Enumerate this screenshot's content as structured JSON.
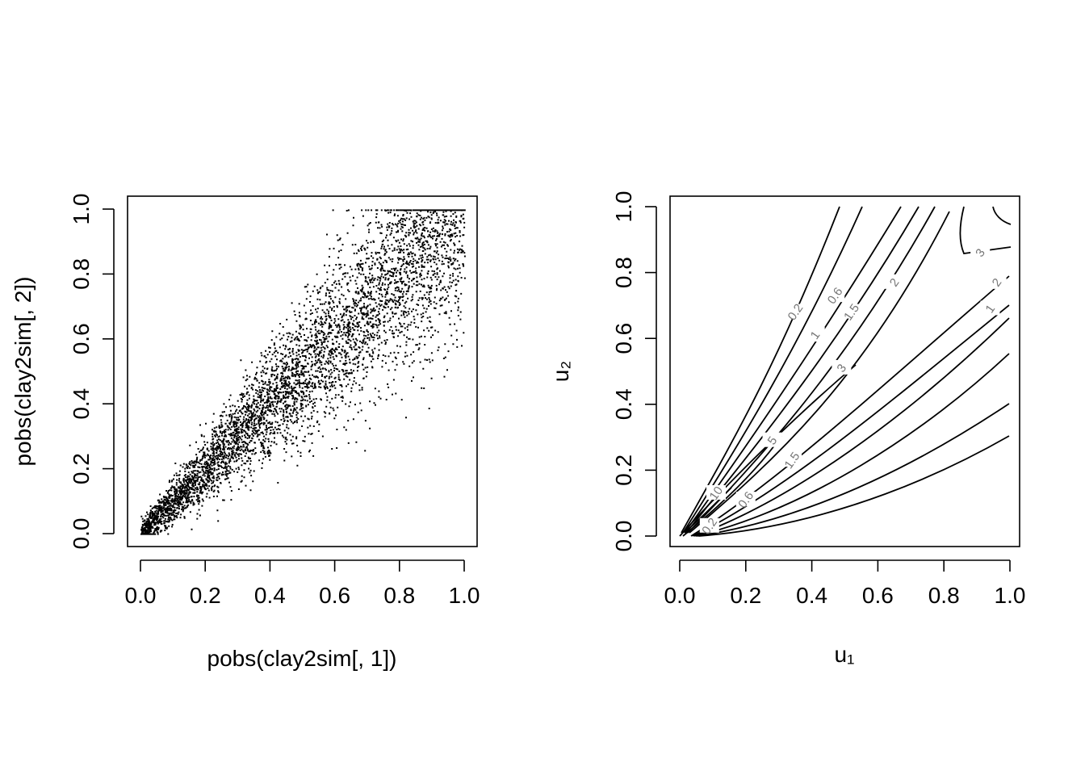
{
  "chart_data": [
    {
      "type": "scatter",
      "xlabel": "pobs(clay2sim[, 1])",
      "ylabel": "pobs(clay2sim[, 2])",
      "xlim": [
        0,
        1
      ],
      "ylim": [
        0,
        1
      ],
      "xticks": [
        "0.0",
        "0.2",
        "0.4",
        "0.6",
        "0.8",
        "1.0"
      ],
      "yticks": [
        "0.0",
        "0.2",
        "0.4",
        "0.6",
        "0.8",
        "1.0"
      ],
      "n_points": 5000,
      "point_color": "#000000",
      "grid": false
    },
    {
      "type": "contour",
      "xlabel": "u₁",
      "ylabel": "u₂",
      "xlim": [
        0,
        1
      ],
      "ylim": [
        0,
        1
      ],
      "xticks": [
        "0.0",
        "0.2",
        "0.4",
        "0.6",
        "0.8",
        "1.0"
      ],
      "yticks": [
        "0.0",
        "0.2",
        "0.4",
        "0.6",
        "0.8",
        "1.0"
      ],
      "contour_labels": [
        {
          "text": "0.2",
          "x": 0.35,
          "y": 0.68
        },
        {
          "text": "0.6",
          "x": 0.47,
          "y": 0.73
        },
        {
          "text": "1",
          "x": 0.41,
          "y": 0.61
        },
        {
          "text": "1.5",
          "x": 0.52,
          "y": 0.68
        },
        {
          "text": "2",
          "x": 0.65,
          "y": 0.77
        },
        {
          "text": "3",
          "x": 0.49,
          "y": 0.51
        },
        {
          "text": "5",
          "x": 0.28,
          "y": 0.29
        },
        {
          "text": "10",
          "x": 0.11,
          "y": 0.13
        },
        {
          "text": "0.6",
          "x": 0.2,
          "y": 0.11
        },
        {
          "text": "0.2",
          "x": 0.09,
          "y": 0.03
        },
        {
          "text": "1.5",
          "x": 0.34,
          "y": 0.23
        },
        {
          "text": "3",
          "x": 0.91,
          "y": 0.86
        },
        {
          "text": "2",
          "x": 0.96,
          "y": 0.77
        },
        {
          "text": "1",
          "x": 0.94,
          "y": 0.69
        }
      ],
      "line_color": "#000000",
      "label_color": "#777777",
      "grid": false
    }
  ]
}
